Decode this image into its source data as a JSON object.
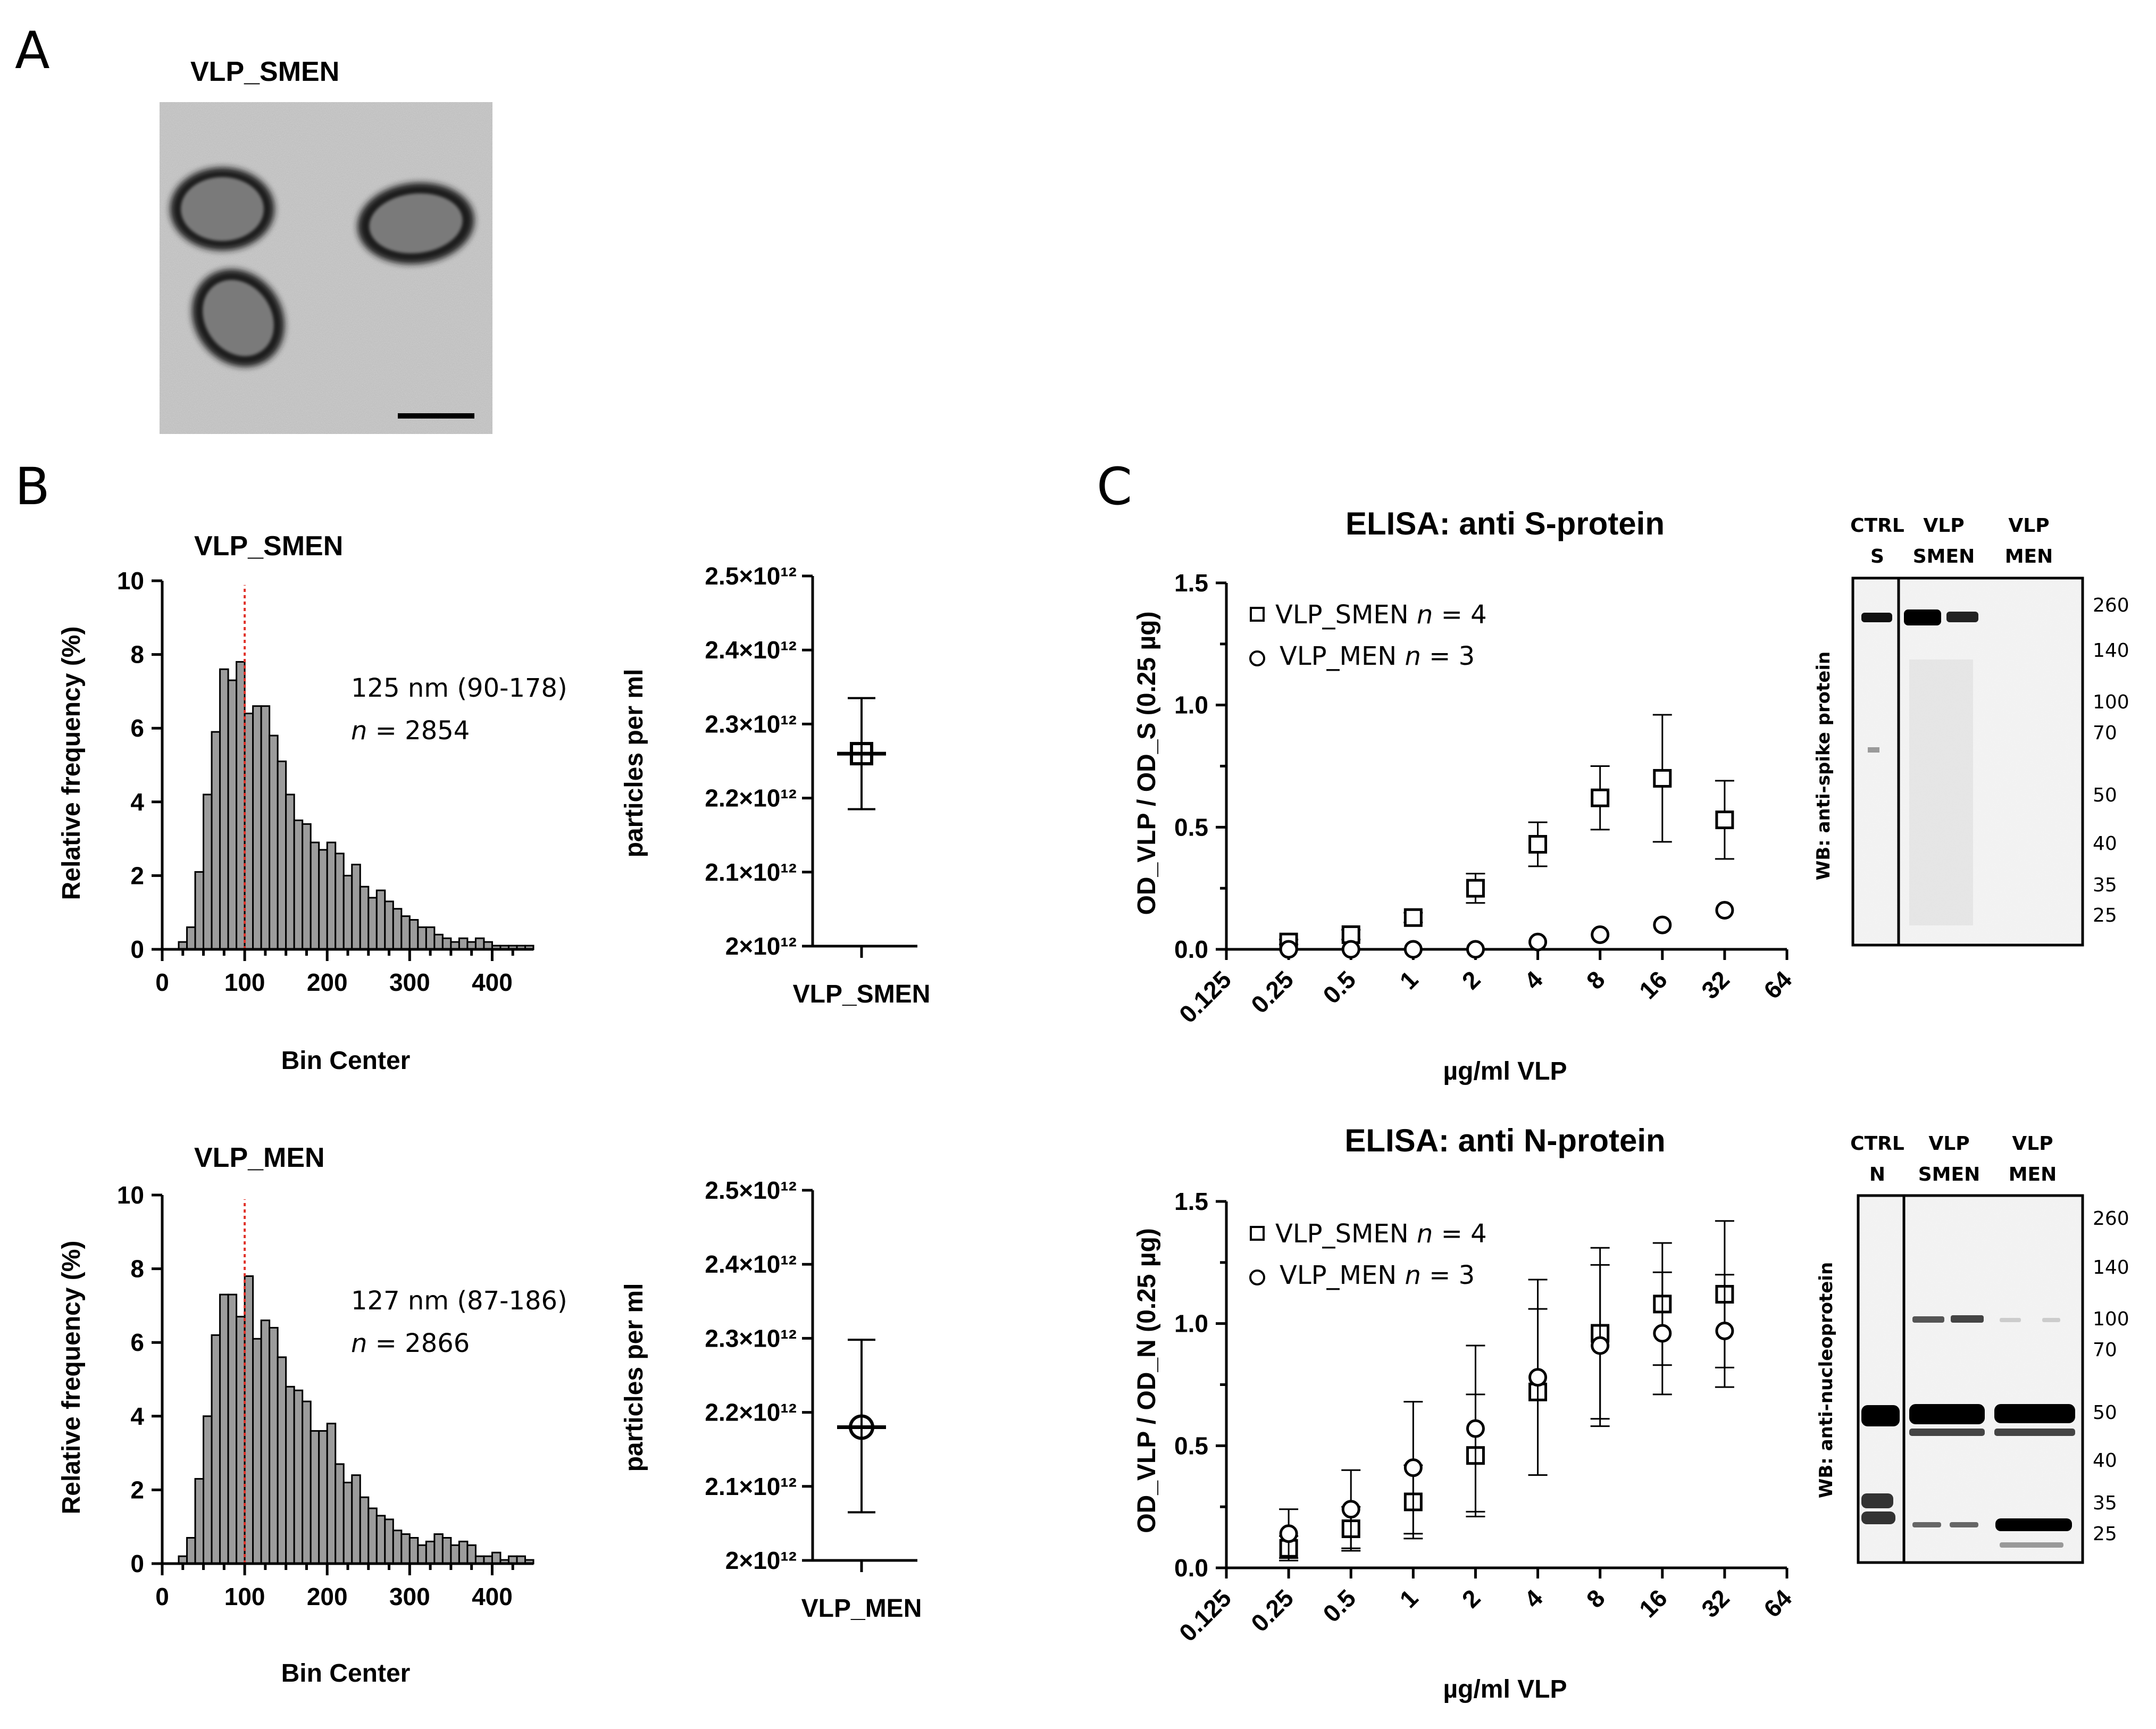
{
  "panels": {
    "A": "A",
    "B": "B",
    "C": "C"
  },
  "tem": {
    "title": "VLP_SMEN",
    "description": "Electron micrograph of three virus-like particles with scale bar"
  },
  "chart_data": [
    {
      "id": "hist_smen",
      "type": "bar",
      "title": "VLP_SMEN",
      "xlabel": "Bin Center",
      "ylabel": "Relative frequency (%)",
      "xlim": [
        0,
        450
      ],
      "ylim": [
        0,
        10
      ],
      "xticks": [
        0,
        100,
        200,
        300,
        400
      ],
      "yticks": [
        0,
        2,
        4,
        6,
        8,
        10
      ],
      "bin_width": 10,
      "bin_start": 20,
      "values": [
        0.2,
        0.6,
        2.1,
        4.2,
        5.9,
        7.6,
        7.3,
        7.8,
        6.4,
        6.6,
        6.6,
        5.8,
        5.1,
        4.2,
        3.5,
        3.4,
        2.9,
        2.7,
        2.9,
        2.6,
        2.0,
        2.3,
        1.7,
        1.4,
        1.6,
        1.3,
        1.1,
        0.9,
        0.8,
        0.6,
        0.6,
        0.4,
        0.3,
        0.2,
        0.3,
        0.2,
        0.3,
        0.2,
        0.1,
        0.1,
        0.1,
        0.1,
        0.1
      ],
      "marker_line": 100,
      "annotation": {
        "line1": "125 nm (90-178)",
        "n_label": "n",
        "n_value": " = 2854"
      }
    },
    {
      "id": "scatter_smen",
      "type": "scatter",
      "ylabel": "particles per ml",
      "yticks": [
        "2×10¹²",
        "2.1×10¹²",
        "2.2×10¹²",
        "2.3×10¹²",
        "2.4×10¹²",
        "2.5×10¹²"
      ],
      "ylim": [
        2000000000000.0,
        2500000000000.0
      ],
      "category": "VLP_SMEN",
      "mean": 2260000000000.0,
      "error_low": 2185000000000.0,
      "error_high": 2335000000000.0,
      "marker": "square"
    },
    {
      "id": "hist_men",
      "type": "bar",
      "title": "VLP_MEN",
      "xlabel": "Bin Center",
      "ylabel": "Relative frequency (%)",
      "xlim": [
        0,
        450
      ],
      "ylim": [
        0,
        10
      ],
      "xticks": [
        0,
        100,
        200,
        300,
        400
      ],
      "yticks": [
        0,
        2,
        4,
        6,
        8,
        10
      ],
      "bin_width": 10,
      "bin_start": 20,
      "values": [
        0.2,
        0.7,
        2.3,
        4.0,
        6.2,
        7.3,
        7.3,
        6.7,
        7.8,
        6.1,
        6.6,
        6.4,
        5.6,
        4.8,
        4.7,
        4.4,
        3.6,
        3.6,
        3.8,
        2.7,
        2.2,
        2.4,
        1.8,
        1.5,
        1.3,
        1.2,
        0.9,
        0.8,
        0.7,
        0.5,
        0.6,
        0.8,
        0.7,
        0.5,
        0.6,
        0.5,
        0.2,
        0.2,
        0.3,
        0.1,
        0.2,
        0.2,
        0.1
      ],
      "marker_line": 100,
      "annotation": {
        "line1": "127 nm (87-186)",
        "n_label": "n",
        "n_value": " = 2866"
      }
    },
    {
      "id": "scatter_men",
      "type": "scatter",
      "ylabel": "particles per ml",
      "yticks": [
        "2×10¹²",
        "2.1×10¹²",
        "2.2×10¹²",
        "2.3×10¹²",
        "2.4×10¹²",
        "2.5×10¹²"
      ],
      "ylim": [
        2000000000000.0,
        2500000000000.0
      ],
      "category": "VLP_MEN",
      "mean": 2180000000000.0,
      "error_low": 2065000000000.0,
      "error_high": 2298000000000.0,
      "marker": "circle"
    },
    {
      "id": "elisa_s",
      "type": "scatter",
      "title": "ELISA: anti S-protein",
      "xlabel": "µg/ml VLP",
      "ylabel": "OD_VLP / OD_S (0.25 µg)",
      "x_scale": "log2",
      "x_ticks": [
        "0.125",
        "0.25",
        "0.5",
        "1",
        "2",
        "4",
        "8",
        "16",
        "32",
        "64"
      ],
      "ylim": [
        0,
        1.5
      ],
      "yticks": [
        "0.0",
        "0.5",
        "1.0",
        "1.5"
      ],
      "legend": [
        {
          "name": "VLP_SMEN",
          "n_label": "n",
          "n_value": " = 4",
          "marker": "square"
        },
        {
          "name": "VLP_MEN",
          "n_label": "n",
          "n_value": " = 3",
          "marker": "circle"
        }
      ],
      "series": [
        {
          "name": "VLP_SMEN",
          "marker": "square",
          "x": [
            0.25,
            0.5,
            1,
            2,
            4,
            8,
            16,
            32
          ],
          "y": [
            0.03,
            0.06,
            0.13,
            0.25,
            0.43,
            0.62,
            0.7,
            0.53
          ],
          "err": [
            0.01,
            0.02,
            0.02,
            0.06,
            0.09,
            0.13,
            0.26,
            0.16
          ]
        },
        {
          "name": "VLP_MEN",
          "marker": "circle",
          "x": [
            0.25,
            0.5,
            1,
            2,
            4,
            8,
            16,
            32
          ],
          "y": [
            0.0,
            0.0,
            0.0,
            0.0,
            0.03,
            0.06,
            0.1,
            0.16
          ],
          "err": [
            0,
            0,
            0,
            0,
            0,
            0,
            0,
            0
          ]
        }
      ]
    },
    {
      "id": "elisa_n",
      "type": "scatter",
      "title": "ELISA: anti N-protein",
      "xlabel": "µg/ml VLP",
      "ylabel": "OD_VLP / OD_N (0.25 µg)",
      "x_scale": "log2",
      "x_ticks": [
        "0.125",
        "0.25",
        "0.5",
        "1",
        "2",
        "4",
        "8",
        "16",
        "32",
        "64"
      ],
      "ylim": [
        0,
        1.5
      ],
      "yticks": [
        "0.0",
        "0.5",
        "1.0",
        "1.5"
      ],
      "legend": [
        {
          "name": "VLP_SMEN",
          "n_label": "n",
          "n_value": " = 4",
          "marker": "square"
        },
        {
          "name": "VLP_MEN",
          "n_label": "n",
          "n_value": " = 3",
          "marker": "circle"
        }
      ],
      "series": [
        {
          "name": "VLP_SMEN",
          "marker": "square",
          "x": [
            0.25,
            0.5,
            1,
            2,
            4,
            8,
            16,
            32
          ],
          "y": [
            0.08,
            0.16,
            0.27,
            0.46,
            0.72,
            0.96,
            1.08,
            1.12
          ],
          "err": [
            0.05,
            0.09,
            0.15,
            0.25,
            0.34,
            0.35,
            0.25,
            0.3
          ]
        },
        {
          "name": "VLP_MEN",
          "marker": "circle",
          "x": [
            0.25,
            0.5,
            1,
            2,
            4,
            8,
            16,
            32
          ],
          "y": [
            0.14,
            0.24,
            0.41,
            0.57,
            0.78,
            0.91,
            0.96,
            0.97
          ],
          "err": [
            0.1,
            0.16,
            0.27,
            0.34,
            0.4,
            0.33,
            0.25,
            0.23
          ]
        }
      ]
    }
  ],
  "western_blots": {
    "spike": {
      "side_label": "WB: anti-spike protein",
      "lanes": [
        {
          "line1": "CTRL",
          "line2": "S"
        },
        {
          "line1": "VLP",
          "line2": "SMEN"
        },
        {
          "line1": "VLP",
          "line2": "MEN"
        }
      ],
      "mw": [
        "260",
        "140",
        "100",
        "70",
        "50",
        "40",
        "35",
        "25"
      ]
    },
    "nucleo": {
      "side_label": "WB: anti-nucleoprotein",
      "lanes": [
        {
          "line1": "CTRL",
          "line2": "N"
        },
        {
          "line1": "VLP",
          "line2": "SMEN"
        },
        {
          "line1": "VLP",
          "line2": "MEN"
        }
      ],
      "mw": [
        "260",
        "140",
        "100",
        "70",
        "50",
        "40",
        "35",
        "25"
      ]
    }
  }
}
